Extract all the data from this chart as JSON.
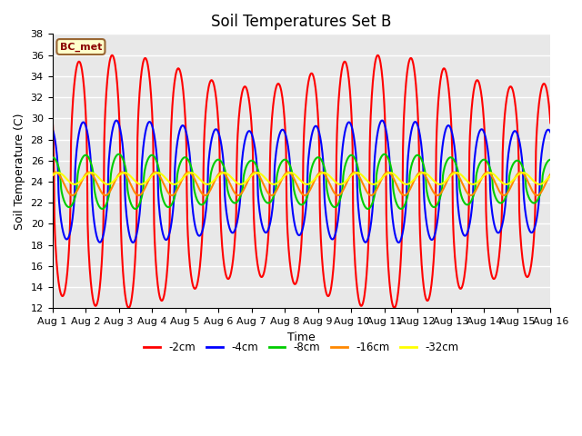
{
  "title": "Soil Temperatures Set B",
  "xlabel": "Time",
  "ylabel": "Soil Temperature (C)",
  "ylim": [
    12,
    38
  ],
  "yticks": [
    12,
    14,
    16,
    18,
    20,
    22,
    24,
    26,
    28,
    30,
    32,
    34,
    36,
    38
  ],
  "x_tick_labels": [
    "Aug 1",
    "Aug 2",
    "Aug 3",
    "Aug 4",
    "Aug 5",
    "Aug 6",
    "Aug 7",
    "Aug 8",
    "Aug 9",
    "Aug 10",
    "Aug 11",
    "Aug 12",
    "Aug 13",
    "Aug 14",
    "Aug 15",
    "Aug 16"
  ],
  "legend_label": "BC_met",
  "series_labels": [
    "-2cm",
    "-4cm",
    "-8cm",
    "-16cm",
    "-32cm"
  ],
  "series_colors": [
    "#ff0000",
    "#0000ff",
    "#00cc00",
    "#ff8800",
    "#ffff00"
  ],
  "fig_bg_color": "#ffffff",
  "plot_bg_color": "#e8e8e8",
  "title_fontsize": 12,
  "axis_label_fontsize": 9,
  "tick_fontsize": 8,
  "grid_color": "#ffffff",
  "n_points": 960
}
